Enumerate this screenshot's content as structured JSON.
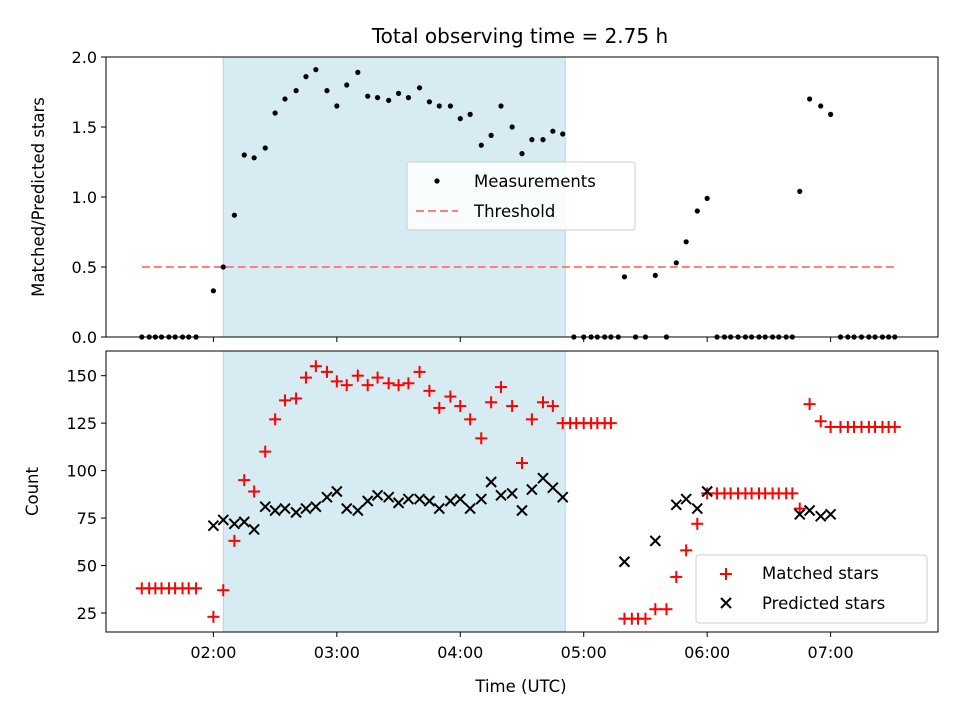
{
  "chart_data": [
    {
      "type": "scatter",
      "title": "Total observing time = 2.75 h",
      "xlabel": "",
      "ylabel": "Matched/Predicted stars",
      "ylim": [
        0,
        2.0
      ],
      "yticks": [
        0.0,
        0.5,
        1.0,
        1.5,
        2.0
      ],
      "ytick_labels": [
        "0.0",
        "0.5",
        "1.0",
        "1.5",
        "2.0"
      ],
      "xlim_hours": [
        1.13,
        7.87
      ],
      "legend_position": "center",
      "shaded_interval_hours": [
        2.08,
        4.85
      ],
      "shaded_color": "#add8e6",
      "threshold": {
        "name": "Threshold",
        "value": 0.5,
        "x_range_hours": [
          1.42,
          7.52
        ],
        "color": "#ff7f7f",
        "style": "dashed"
      },
      "series": [
        {
          "name": "Measurements",
          "color": "#000000",
          "marker": "dot",
          "x_hours": [
            1.42,
            1.48,
            1.53,
            1.58,
            1.64,
            1.69,
            1.75,
            1.8,
            1.86,
            2.0,
            2.08,
            2.17,
            2.25,
            2.33,
            2.42,
            2.5,
            2.58,
            2.67,
            2.75,
            2.83,
            2.92,
            3.0,
            3.08,
            3.17,
            3.25,
            3.33,
            3.42,
            3.5,
            3.58,
            3.67,
            3.75,
            3.83,
            3.92,
            4.0,
            4.08,
            4.17,
            4.25,
            4.33,
            4.42,
            4.5,
            4.58,
            4.67,
            4.75,
            4.83,
            4.92,
            5.0,
            5.06,
            5.11,
            5.17,
            5.22,
            5.28,
            5.33,
            5.42,
            5.5,
            5.58,
            5.67,
            5.75,
            5.83,
            5.92,
            6.0,
            6.08,
            6.14,
            6.19,
            6.25,
            6.31,
            6.36,
            6.42,
            6.47,
            6.53,
            6.58,
            6.64,
            6.69,
            6.75,
            6.83,
            6.92,
            7.0,
            7.08,
            7.14,
            7.19,
            7.25,
            7.31,
            7.36,
            7.42,
            7.47,
            7.52
          ],
          "y": [
            0,
            0,
            0,
            0,
            0,
            0,
            0,
            0,
            0,
            0.33,
            0.5,
            0.87,
            1.3,
            1.28,
            1.35,
            1.6,
            1.7,
            1.76,
            1.86,
            1.91,
            1.76,
            1.65,
            1.8,
            1.89,
            1.72,
            1.71,
            1.69,
            1.74,
            1.71,
            1.78,
            1.68,
            1.65,
            1.65,
            1.56,
            1.59,
            1.37,
            1.44,
            1.65,
            1.5,
            1.31,
            1.41,
            1.41,
            1.47,
            1.45,
            0,
            0,
            0,
            0,
            0,
            0,
            0,
            0.43,
            0,
            0,
            0.44,
            0,
            0.53,
            0.68,
            0.9,
            0.99,
            0,
            0,
            0,
            0,
            0,
            0,
            0,
            0,
            0,
            0,
            0,
            0,
            1.04,
            1.7,
            1.65,
            1.59,
            0,
            0,
            0,
            0,
            0,
            0,
            0,
            0,
            0
          ]
        }
      ]
    },
    {
      "type": "scatter",
      "title": "",
      "xlabel": "Time (UTC)",
      "ylabel": "Count",
      "ylim": [
        15,
        163
      ],
      "yticks": [
        25,
        50,
        75,
        100,
        125,
        150
      ],
      "ytick_labels": [
        "25",
        "50",
        "75",
        "100",
        "125",
        "150"
      ],
      "xlim_hours": [
        1.13,
        7.87
      ],
      "xticks_hours": [
        2,
        3,
        4,
        5,
        6,
        7
      ],
      "xtick_labels": [
        "02:00",
        "03:00",
        "04:00",
        "05:00",
        "06:00",
        "07:00"
      ],
      "legend_position": "lower right",
      "shaded_interval_hours": [
        2.08,
        4.85
      ],
      "shaded_color": "#add8e6",
      "series": [
        {
          "name": "Matched stars",
          "color": "#ff0000",
          "marker": "plus",
          "x_hours": [
            1.42,
            1.48,
            1.53,
            1.58,
            1.64,
            1.69,
            1.75,
            1.8,
            1.86,
            2.0,
            2.08,
            2.17,
            2.25,
            2.33,
            2.42,
            2.5,
            2.58,
            2.67,
            2.75,
            2.83,
            2.92,
            3.0,
            3.08,
            3.17,
            3.25,
            3.33,
            3.42,
            3.5,
            3.58,
            3.67,
            3.75,
            3.83,
            3.92,
            4.0,
            4.08,
            4.17,
            4.25,
            4.33,
            4.42,
            4.5,
            4.58,
            4.67,
            4.75,
            4.83,
            4.89,
            4.94,
            5.0,
            5.06,
            5.11,
            5.17,
            5.22,
            5.33,
            5.39,
            5.44,
            5.5,
            5.58,
            5.67,
            5.75,
            5.83,
            5.92,
            6.0,
            6.08,
            6.14,
            6.19,
            6.25,
            6.31,
            6.36,
            6.42,
            6.47,
            6.53,
            6.58,
            6.64,
            6.69,
            6.75,
            6.83,
            6.92,
            7.0,
            7.08,
            7.14,
            7.19,
            7.25,
            7.31,
            7.36,
            7.42,
            7.47,
            7.52
          ],
          "y": [
            38,
            38,
            38,
            38,
            38,
            38,
            38,
            38,
            38,
            23,
            37,
            63,
            95,
            89,
            110,
            127,
            137,
            138,
            149,
            155,
            152,
            147,
            145,
            150,
            145,
            149,
            146,
            145,
            146,
            152,
            142,
            133,
            139,
            134,
            127,
            117,
            136,
            144,
            134,
            104,
            127,
            136,
            134,
            125,
            125,
            125,
            125,
            125,
            125,
            125,
            125,
            22,
            22,
            22,
            22,
            27,
            27,
            44,
            58,
            72,
            88,
            88,
            88,
            88,
            88,
            88,
            88,
            88,
            88,
            88,
            88,
            88,
            88,
            80,
            135,
            126,
            123,
            123,
            123,
            123,
            123,
            123,
            123,
            123,
            123,
            123
          ]
        },
        {
          "name": "Predicted stars",
          "color": "#000000",
          "marker": "x",
          "x_hours": [
            2.0,
            2.08,
            2.17,
            2.25,
            2.33,
            2.42,
            2.5,
            2.58,
            2.67,
            2.75,
            2.83,
            2.92,
            3.0,
            3.08,
            3.17,
            3.25,
            3.33,
            3.42,
            3.5,
            3.58,
            3.67,
            3.75,
            3.83,
            3.92,
            4.0,
            4.08,
            4.17,
            4.25,
            4.33,
            4.42,
            4.5,
            4.58,
            4.67,
            4.75,
            4.83,
            5.33,
            5.58,
            5.75,
            5.83,
            5.92,
            6.0,
            6.75,
            6.83,
            6.92,
            7.0
          ],
          "y": [
            71,
            74,
            72,
            73,
            69,
            81,
            79,
            80,
            78,
            80,
            81,
            86,
            89,
            80,
            79,
            84,
            87,
            86,
            83,
            85,
            85,
            84,
            80,
            84,
            85,
            80,
            85,
            94,
            87,
            88,
            79,
            90,
            96,
            91,
            86,
            52,
            63,
            82,
            85,
            80,
            89,
            77,
            79,
            76,
            77
          ]
        }
      ]
    }
  ]
}
